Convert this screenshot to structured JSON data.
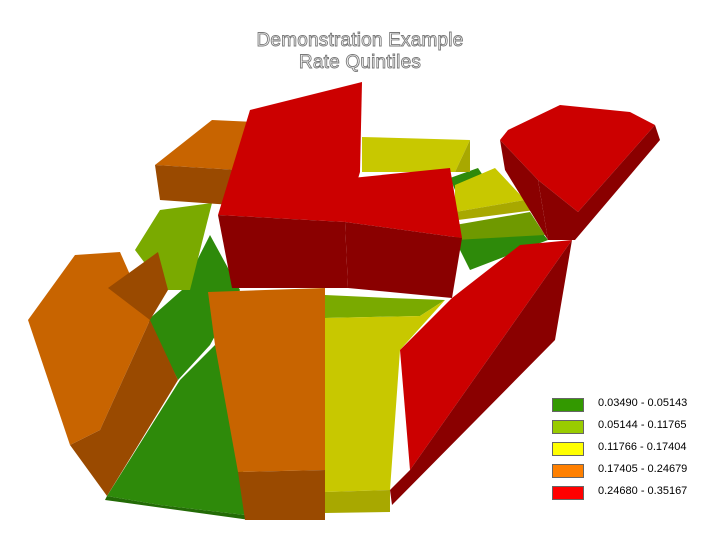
{
  "title": {
    "line1": "Demonstration Example",
    "line2": "Rate Quintiles"
  },
  "legend": {
    "items": [
      {
        "label": "0.03490 - 0.05143",
        "color": "#339900"
      },
      {
        "label": "0.05144 - 0.11765",
        "color": "#99cc00"
      },
      {
        "label": "0.11766 - 0.17404",
        "color": "#ffff00"
      },
      {
        "label": "0.17405 - 0.24679",
        "color": "#ff8000"
      },
      {
        "label": "0.24680 - 0.35167",
        "color": "#ff0000"
      }
    ]
  },
  "map": {
    "type": "3d-prism-choropleth",
    "face_colors": {
      "green_top": "#2e8a0a",
      "green_side": "#2a7a08",
      "lightgreen_top": "#7aaa00",
      "lightgreen_side": "#6f9900",
      "yellow_top": "#c8c800",
      "yellow_side": "#a8a800",
      "orange_top": "#c86400",
      "orange_side": "#9a4a00",
      "red_top": "#cc0000",
      "red_side": "#8a0000"
    }
  }
}
